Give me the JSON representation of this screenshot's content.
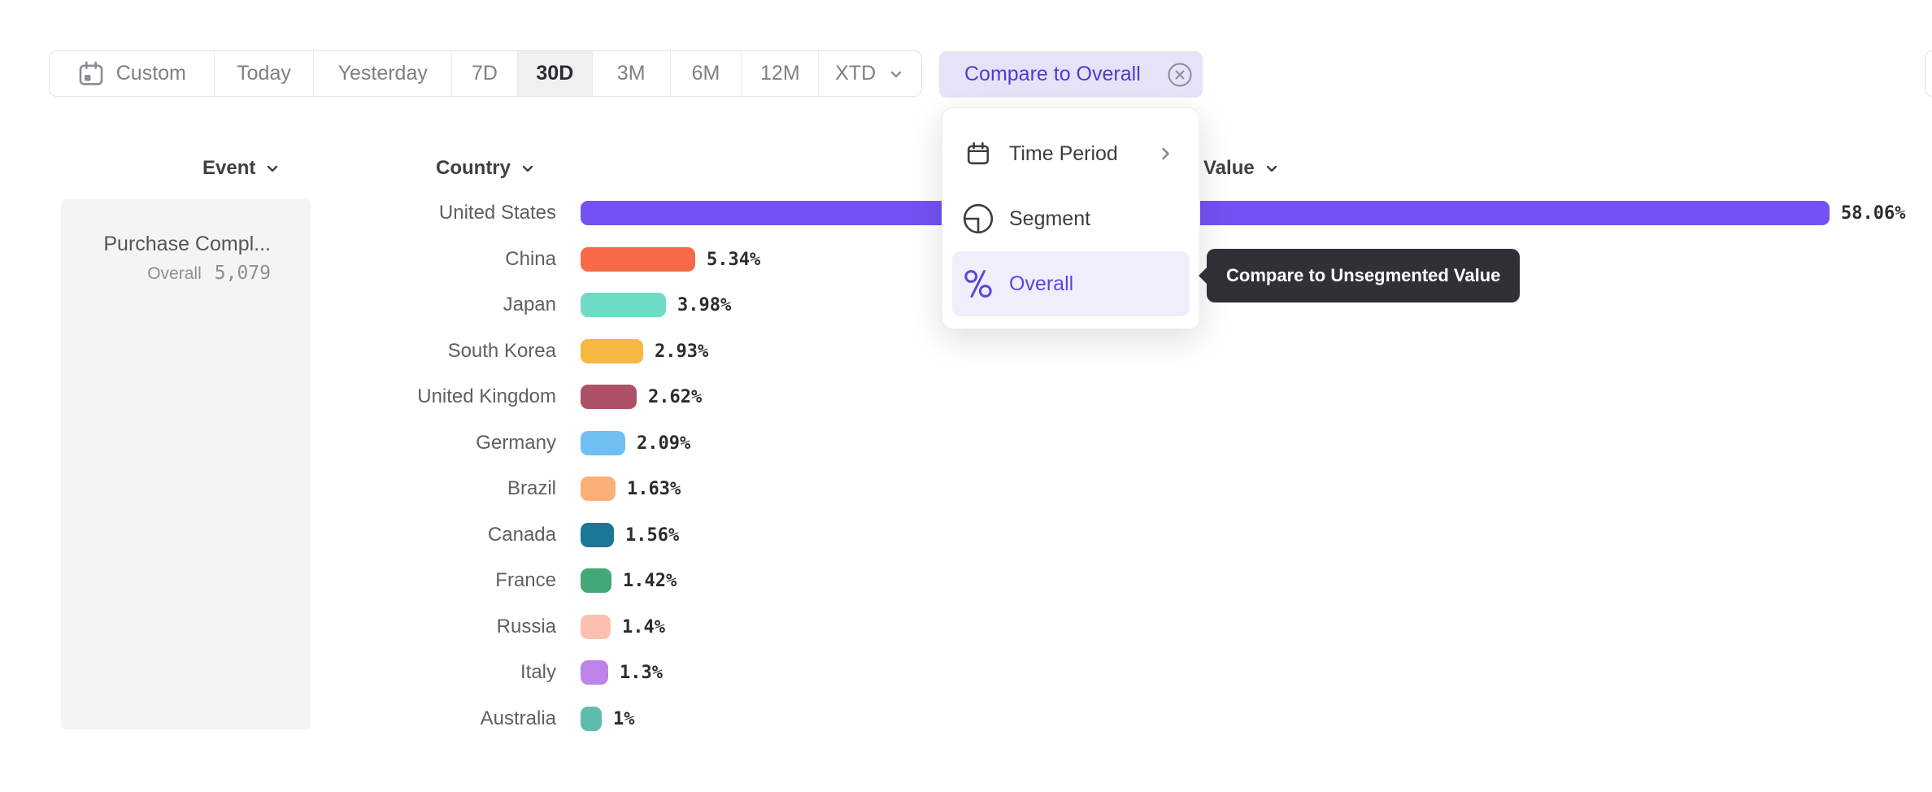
{
  "colors": {
    "accent": "#4c3bd6",
    "selected_menu_bg": "#f0eefb",
    "compare_bg": "#e6e3f9",
    "tooltip_bg": "#323036"
  },
  "toolbar": {
    "items": [
      {
        "label": "Custom",
        "icon": "calendar"
      },
      {
        "label": "Today"
      },
      {
        "label": "Yesterday"
      },
      {
        "label": "7D"
      },
      {
        "label": "30D",
        "selected": true
      },
      {
        "label": "3M"
      },
      {
        "label": "6M"
      },
      {
        "label": "12M"
      },
      {
        "label": "XTD",
        "trailing": "chevron-down"
      }
    ],
    "compare_button": {
      "label": "Compare to Overall",
      "icon": "circled-x"
    }
  },
  "menu": {
    "items": [
      {
        "label": "Time Period",
        "icon": "calendar",
        "trailing": "chevron-right"
      },
      {
        "label": "Segment",
        "icon": "segment"
      },
      {
        "label": "Overall",
        "icon": "percent",
        "selected": true
      }
    ]
  },
  "tooltip": {
    "text": "Compare to Unsegmented Value"
  },
  "columns": {
    "event": "Event",
    "country": "Country",
    "value": "Value"
  },
  "event_panel": {
    "title": "Purchase Compl...",
    "overall_label": "Overall",
    "overall_value": "5,079"
  },
  "chart_data": {
    "type": "bar",
    "orientation": "horizontal",
    "title": "",
    "xlabel": "Value",
    "ylabel": "Country",
    "categories": [
      "United States",
      "China",
      "Japan",
      "South Korea",
      "United Kingdom",
      "Germany",
      "Brazil",
      "Canada",
      "France",
      "Russia",
      "Italy",
      "Australia"
    ],
    "values": [
      58.06,
      5.34,
      3.98,
      2.93,
      2.62,
      2.09,
      1.63,
      1.56,
      1.42,
      1.4,
      1.3,
      1
    ],
    "value_labels": [
      "58.06%",
      "5.34%",
      "3.98%",
      "2.93%",
      "2.62%",
      "2.09%",
      "1.63%",
      "1.56%",
      "1.42%",
      "1.4%",
      "1.3%",
      "1%"
    ],
    "colors": [
      "#7451f2",
      "#f86a47",
      "#6edbc6",
      "#f6b840",
      "#ad5168",
      "#70bff2",
      "#fbb077",
      "#1b7795",
      "#43a877",
      "#fcc0b1",
      "#bb84e6",
      "#5dbcab"
    ]
  }
}
